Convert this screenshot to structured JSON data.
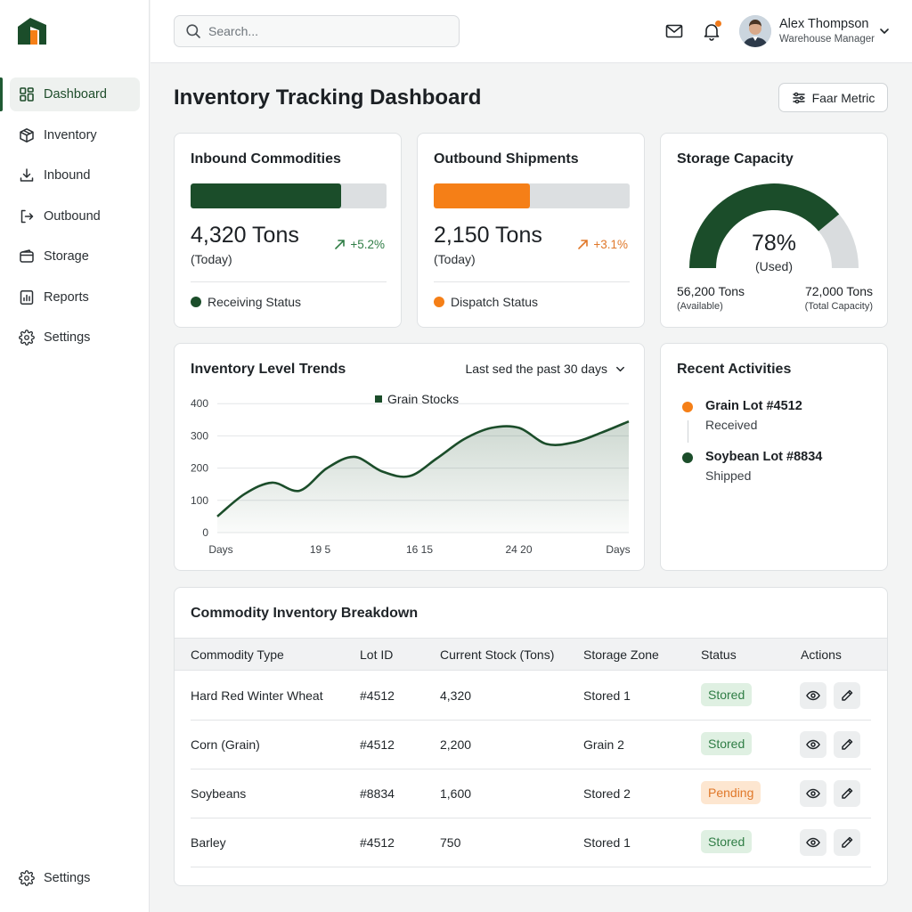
{
  "colors": {
    "brand_green": "#1b4d2a",
    "accent_orange": "#f57f17",
    "track_gray": "#dcdfe1"
  },
  "sidebar": {
    "items": [
      {
        "label": "Dashboard",
        "icon": "grid-icon",
        "active": true
      },
      {
        "label": "Inventory",
        "icon": "box-icon"
      },
      {
        "label": "Inbound",
        "icon": "download-icon"
      },
      {
        "label": "Outbound",
        "icon": "logout-icon"
      },
      {
        "label": "Storage",
        "icon": "wallet-icon"
      },
      {
        "label": "Reports",
        "icon": "report-icon"
      },
      {
        "label": "Settings",
        "icon": "gear-icon"
      }
    ],
    "bottom_settings": "Settings"
  },
  "header": {
    "search_placeholder": "Search...",
    "user_name": "Alex Thompson",
    "user_role": "Warehouse Manager"
  },
  "main": {
    "title": "Inventory Tracking Dashboard",
    "metric_button": "Faar Metric"
  },
  "inbound": {
    "title": "Inbound Commodities",
    "progress": 0.77,
    "value": "4,320 Tons",
    "period": "(Today)",
    "trend": "+5.2%",
    "status": "Receiving Status"
  },
  "outbound": {
    "title": "Outbound Shipments",
    "progress": 0.49,
    "value": "2,150 Tons",
    "period": "(Today)",
    "trend": "+3.1%",
    "status": "Dispatch Status"
  },
  "storage": {
    "title": "Storage Capacity",
    "used_fraction": 0.78,
    "percent": "78%",
    "used_label": "(Used)",
    "available_value": "56,200 Tons",
    "available_label": "(Available)",
    "total_value": "72,000 Tons",
    "total_label": "(Total Capacity)"
  },
  "trends": {
    "title": "Inventory Level Trends",
    "range": "Last sed the past 30 days"
  },
  "chart_data": {
    "type": "area",
    "title": "Inventory Level Trends",
    "series": [
      {
        "name": "Grain Stocks",
        "x": [
          0,
          2,
          4,
          6,
          8,
          10,
          12,
          14,
          16,
          18,
          20,
          22,
          24,
          26,
          28,
          30
        ],
        "values": [
          50,
          120,
          155,
          130,
          200,
          235,
          190,
          175,
          230,
          290,
          325,
          325,
          275,
          280,
          310,
          345
        ]
      }
    ],
    "x_tick_labels": [
      "Days",
      "19 5",
      "16 15",
      "24 20",
      "Days"
    ],
    "y_ticks": [
      0,
      100,
      200,
      300,
      400
    ],
    "ylim": [
      0,
      420
    ],
    "legend": "top-center",
    "grid": true
  },
  "activities": {
    "title": "Recent Activities",
    "items": [
      {
        "title": "Grain Lot #4512",
        "sub": "Received",
        "color": "#f57f17"
      },
      {
        "title": "Soybean Lot #8834",
        "sub": "Shipped",
        "color": "#1b4d2a"
      }
    ]
  },
  "table": {
    "title": "Commodity Inventory Breakdown",
    "columns": [
      "Commodity Type",
      "Lot ID",
      "Current Stock (Tons)",
      "Storage Zone",
      "Status",
      "Actions"
    ],
    "rows": [
      {
        "type": "Hard Red Winter Wheat",
        "lot": "#4512",
        "stock": "4,320",
        "zone": "Stored 1",
        "status": "Stored",
        "status_kind": "stored"
      },
      {
        "type": "Corn (Grain)",
        "lot": "#4512",
        "stock": "2,200",
        "zone": "Grain 2",
        "status": "Stored",
        "status_kind": "stored"
      },
      {
        "type": "Soybeans",
        "lot": "#8834",
        "stock": "1,600",
        "zone": "Stored 2",
        "status": "Pending",
        "status_kind": "pending"
      },
      {
        "type": "Barley",
        "lot": "#4512",
        "stock": "750",
        "zone": "Stored 1",
        "status": "Stored",
        "status_kind": "stored"
      }
    ]
  }
}
